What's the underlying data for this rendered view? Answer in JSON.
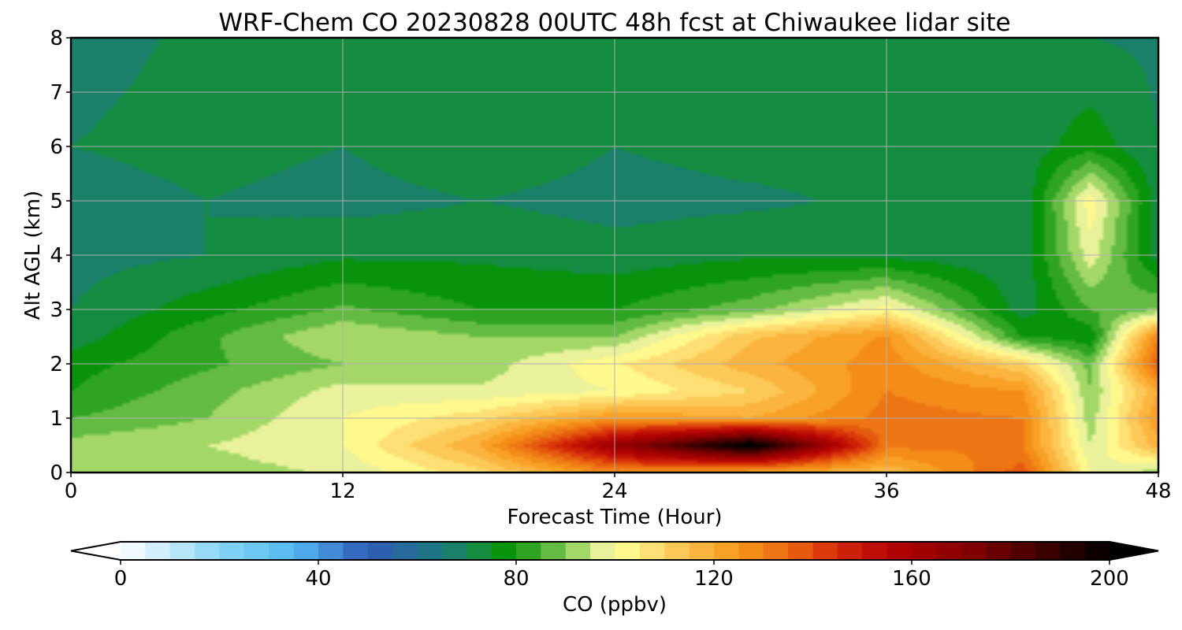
{
  "chart_data": {
    "type": "heatmap",
    "title": "WRF-Chem CO  20230828 00UTC 48h fcst at Chiwaukee lidar site",
    "xlabel": "Forecast Time (Hour)",
    "ylabel": "Alt AGL (km)",
    "xlim": [
      0,
      48
    ],
    "ylim": [
      0,
      8
    ],
    "xticks": [
      0,
      12,
      24,
      36,
      48
    ],
    "yticks": [
      0,
      1,
      2,
      3,
      4,
      5,
      6,
      7,
      8
    ],
    "grid": true,
    "colorbar": {
      "label": "CO  (ppbv)",
      "range": [
        0,
        200
      ],
      "ticks": [
        0,
        40,
        80,
        120,
        160,
        200
      ],
      "extend": "both",
      "orientation": "horizontal",
      "placement": "bottom"
    },
    "field": {
      "units": "ppbv",
      "hours": [
        0,
        6,
        12,
        18,
        24,
        30,
        36,
        42,
        45,
        48
      ],
      "altitudes_km": [
        0,
        0.5,
        1,
        1.5,
        2,
        2.5,
        3,
        4,
        5,
        6,
        8
      ],
      "values": [
        [
          95,
          92,
          96,
          108,
          128,
          120,
          115,
          138,
          100,
          92
        ],
        [
          92,
          95,
          100,
          120,
          165,
          205,
          132,
          130,
          95,
          118
        ],
        [
          85,
          90,
          100,
          108,
          125,
          120,
          132,
          130,
          92,
          125
        ],
        [
          80,
          88,
          97,
          96,
          100,
          110,
          130,
          125,
          90,
          120
        ],
        [
          78,
          84,
          90,
          92,
          104,
          118,
          128,
          110,
          88,
          138
        ],
        [
          72,
          84,
          95,
          90,
          90,
          114,
          126,
          80,
          76,
          130
        ],
        [
          70,
          78,
          86,
          80,
          80,
          88,
          102,
          72,
          85,
          90
        ],
        [
          68,
          70,
          74,
          74,
          72,
          74,
          73,
          71,
          98,
          72
        ],
        [
          67,
          70,
          68,
          70,
          68,
          69,
          71,
          70,
          103,
          72
        ],
        [
          70,
          72,
          70,
          74,
          70,
          72,
          72,
          72,
          78,
          70
        ],
        [
          68,
          71,
          75,
          73,
          73,
          71,
          73,
          70,
          70,
          69
        ]
      ]
    },
    "colormap": {
      "stops": [
        {
          "v": 0,
          "c": "#ffffff"
        },
        {
          "v": 20,
          "c": "#87d5f5"
        },
        {
          "v": 35,
          "c": "#53b8f0"
        },
        {
          "v": 50,
          "c": "#2f5bb7"
        },
        {
          "v": 65,
          "c": "#1c7a7e"
        },
        {
          "v": 72,
          "c": "#168c46"
        },
        {
          "v": 78,
          "c": "#069406"
        },
        {
          "v": 85,
          "c": "#45ad32"
        },
        {
          "v": 92,
          "c": "#9cd563"
        },
        {
          "v": 98,
          "c": "#f0f4a0"
        },
        {
          "v": 102,
          "c": "#fffa90"
        },
        {
          "v": 110,
          "c": "#fdd366"
        },
        {
          "v": 118,
          "c": "#fbb23a"
        },
        {
          "v": 125,
          "c": "#f7971a"
        },
        {
          "v": 135,
          "c": "#ea6a10"
        },
        {
          "v": 145,
          "c": "#d42a08"
        },
        {
          "v": 155,
          "c": "#b60404"
        },
        {
          "v": 170,
          "c": "#8a0000"
        },
        {
          "v": 185,
          "c": "#450000"
        },
        {
          "v": 200,
          "c": "#000000"
        }
      ],
      "under": "#ffffff",
      "over": "#000000"
    }
  }
}
